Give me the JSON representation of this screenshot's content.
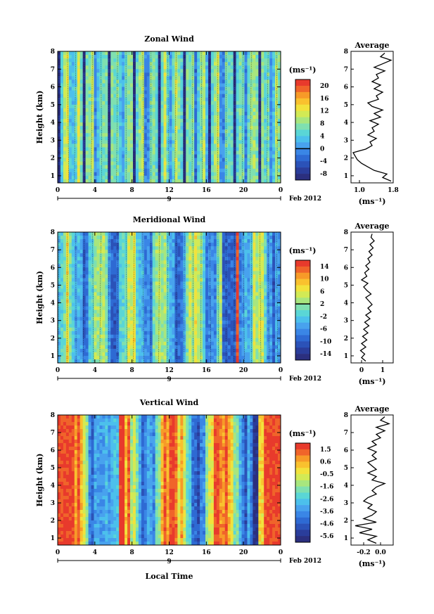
{
  "figure": {
    "date_label": "Feb 2012",
    "day_label": "9",
    "xlabel": "Local Time",
    "ylabel": "Height (km)",
    "unit_label": "(ms⁻¹)",
    "avg_title": "Average",
    "avg_unit": "(ms⁻¹)"
  },
  "chart_data": [
    {
      "type": "heatmap",
      "title": "Zonal Wind",
      "xlabel": "Local Time",
      "ylabel": "Height (km)",
      "x_ticks": [
        "0",
        "4",
        "8",
        "12",
        "16",
        "20",
        "0"
      ],
      "y_ticks": [
        "1",
        "2",
        "3",
        "4",
        "5",
        "6",
        "7",
        "8"
      ],
      "xlim": [
        0,
        24
      ],
      "ylim": [
        0.6,
        8
      ],
      "colorbar": {
        "label": "(ms⁻¹)",
        "ticks": [
          "20",
          "16",
          "12",
          "8",
          "4",
          "0",
          "-4",
          "-8"
        ],
        "range": [
          -10,
          22
        ]
      },
      "average": {
        "title": "Average",
        "xlabel": "(ms⁻¹)",
        "x_ticks": [
          "1.0",
          "1.8"
        ],
        "xlim": [
          0.8,
          1.8
        ],
        "height": [
          0.7,
          0.9,
          1.1,
          1.3,
          1.5,
          1.7,
          1.9,
          2.1,
          2.3,
          2.5,
          2.7,
          2.9,
          3.1,
          3.3,
          3.5,
          3.7,
          3.9,
          4.1,
          4.3,
          4.5,
          4.7,
          4.9,
          5.1,
          5.3,
          5.5,
          5.7,
          5.9,
          6.1,
          6.3,
          6.5,
          6.7,
          6.9,
          7.1,
          7.3,
          7.5,
          7.7,
          7.9
        ],
        "value": [
          1.75,
          1.55,
          1.65,
          1.35,
          1.2,
          1.05,
          0.95,
          0.9,
          0.85,
          1.15,
          1.3,
          1.25,
          1.4,
          1.2,
          1.35,
          1.3,
          1.45,
          1.25,
          1.5,
          1.35,
          1.55,
          1.3,
          1.2,
          1.45,
          1.4,
          1.55,
          1.35,
          1.5,
          1.3,
          1.45,
          1.4,
          1.6,
          1.35,
          1.55,
          1.75,
          1.5,
          1.6
        ]
      }
    },
    {
      "type": "heatmap",
      "title": "Meridional Wind",
      "xlabel": "Local Time",
      "ylabel": "Height (km)",
      "x_ticks": [
        "0",
        "4",
        "8",
        "12",
        "16",
        "20",
        "0"
      ],
      "y_ticks": [
        "1",
        "2",
        "3",
        "4",
        "5",
        "6",
        "7",
        "8"
      ],
      "xlim": [
        0,
        24
      ],
      "ylim": [
        0.6,
        8
      ],
      "colorbar": {
        "label": "(ms⁻¹)",
        "ticks": [
          "14",
          "10",
          "6",
          "2",
          "-2",
          "-6",
          "-10",
          "-14"
        ],
        "range": [
          -16,
          16
        ]
      },
      "average": {
        "title": "Average",
        "xlabel": "(ms⁻¹)",
        "x_ticks": [
          "0",
          "1"
        ],
        "xlim": [
          -0.5,
          1.5
        ],
        "height": [
          0.7,
          0.9,
          1.1,
          1.3,
          1.5,
          1.7,
          1.9,
          2.1,
          2.3,
          2.5,
          2.7,
          2.9,
          3.1,
          3.3,
          3.5,
          3.7,
          3.9,
          4.1,
          4.3,
          4.5,
          4.7,
          4.9,
          5.1,
          5.3,
          5.5,
          5.7,
          5.9,
          6.1,
          6.3,
          6.5,
          6.7,
          6.9,
          7.1,
          7.3,
          7.5,
          7.7,
          7.9
        ],
        "value": [
          0.2,
          0.0,
          0.15,
          -0.05,
          0.2,
          0.0,
          0.25,
          0.05,
          0.3,
          0.1,
          0.35,
          0.15,
          0.4,
          0.2,
          0.45,
          0.3,
          0.5,
          0.35,
          0.2,
          0.45,
          0.25,
          0.1,
          0.3,
          0.0,
          0.25,
          0.15,
          0.35,
          0.2,
          0.4,
          0.3,
          0.5,
          0.35,
          0.55,
          0.4,
          0.6,
          0.45,
          0.5
        ]
      }
    },
    {
      "type": "heatmap",
      "title": "Vertical Wind",
      "xlabel": "Local Time",
      "ylabel": "Height (km)",
      "x_ticks": [
        "0",
        "4",
        "8",
        "12",
        "16",
        "20",
        "0"
      ],
      "y_ticks": [
        "1",
        "2",
        "3",
        "4",
        "5",
        "6",
        "7",
        "8"
      ],
      "xlim": [
        0,
        24
      ],
      "ylim": [
        0.6,
        8
      ],
      "colorbar": {
        "label": "(ms⁻¹)",
        "ticks": [
          "1.5",
          "0.6",
          "-0.5",
          "-1.6",
          "-2.6",
          "-3.6",
          "-4.6",
          "-5.6"
        ],
        "range": [
          -6.1,
          2.1
        ]
      },
      "average": {
        "title": "Average",
        "xlabel": "(ms⁻¹)",
        "x_ticks": [
          "-0.2",
          "0.0"
        ],
        "xlim": [
          -0.35,
          0.15
        ],
        "height": [
          0.7,
          0.9,
          1.1,
          1.3,
          1.5,
          1.7,
          1.9,
          2.1,
          2.3,
          2.5,
          2.7,
          2.9,
          3.1,
          3.3,
          3.5,
          3.7,
          3.9,
          4.1,
          4.3,
          4.5,
          4.7,
          4.9,
          5.1,
          5.3,
          5.5,
          5.7,
          5.9,
          6.1,
          6.3,
          6.5,
          6.7,
          6.9,
          7.1,
          7.3,
          7.5,
          7.7,
          7.9
        ],
        "value": [
          -0.05,
          -0.15,
          -0.05,
          -0.25,
          -0.1,
          -0.3,
          -0.05,
          -0.2,
          -0.1,
          -0.05,
          -0.15,
          -0.1,
          -0.2,
          -0.15,
          -0.05,
          -0.1,
          -0.05,
          0.05,
          -0.1,
          -0.05,
          -0.15,
          -0.05,
          -0.1,
          -0.15,
          -0.05,
          -0.1,
          -0.05,
          -0.15,
          -0.05,
          -0.1,
          0.0,
          -0.05,
          0.05,
          -0.05,
          0.1,
          0.0,
          0.05
        ]
      }
    }
  ]
}
